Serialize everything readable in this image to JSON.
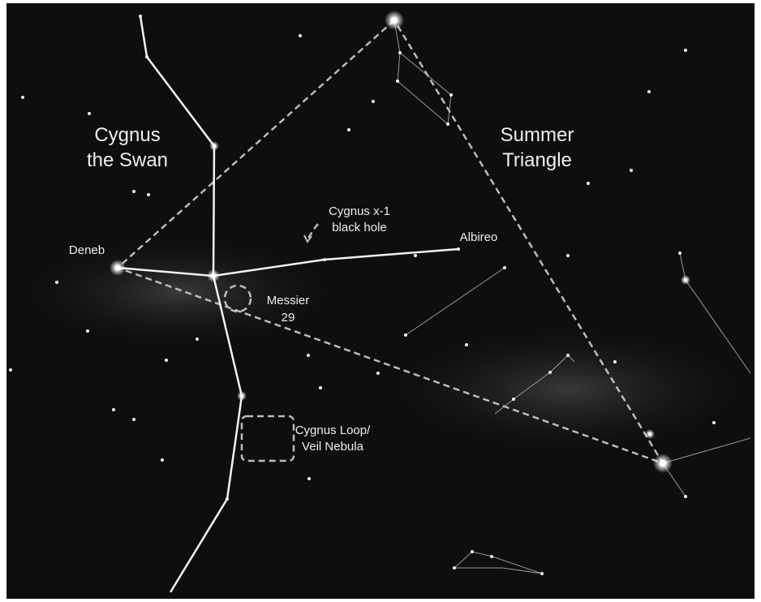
{
  "labels": [
    {
      "lines": [
        "Cygnus",
        "the Swan"
      ]
    },
    {
      "lines": [
        "Summer",
        "Triangle"
      ]
    },
    {
      "lines": [
        "Cygnus x-1",
        "black hole"
      ]
    },
    {
      "lines": [
        "Albireo"
      ]
    },
    {
      "lines": [
        "Deneb"
      ]
    },
    {
      "lines": [
        "Messier",
        "29"
      ]
    },
    {
      "lines": [
        "Cygnus Loop/",
        "Veil Nebula"
      ]
    }
  ]
}
